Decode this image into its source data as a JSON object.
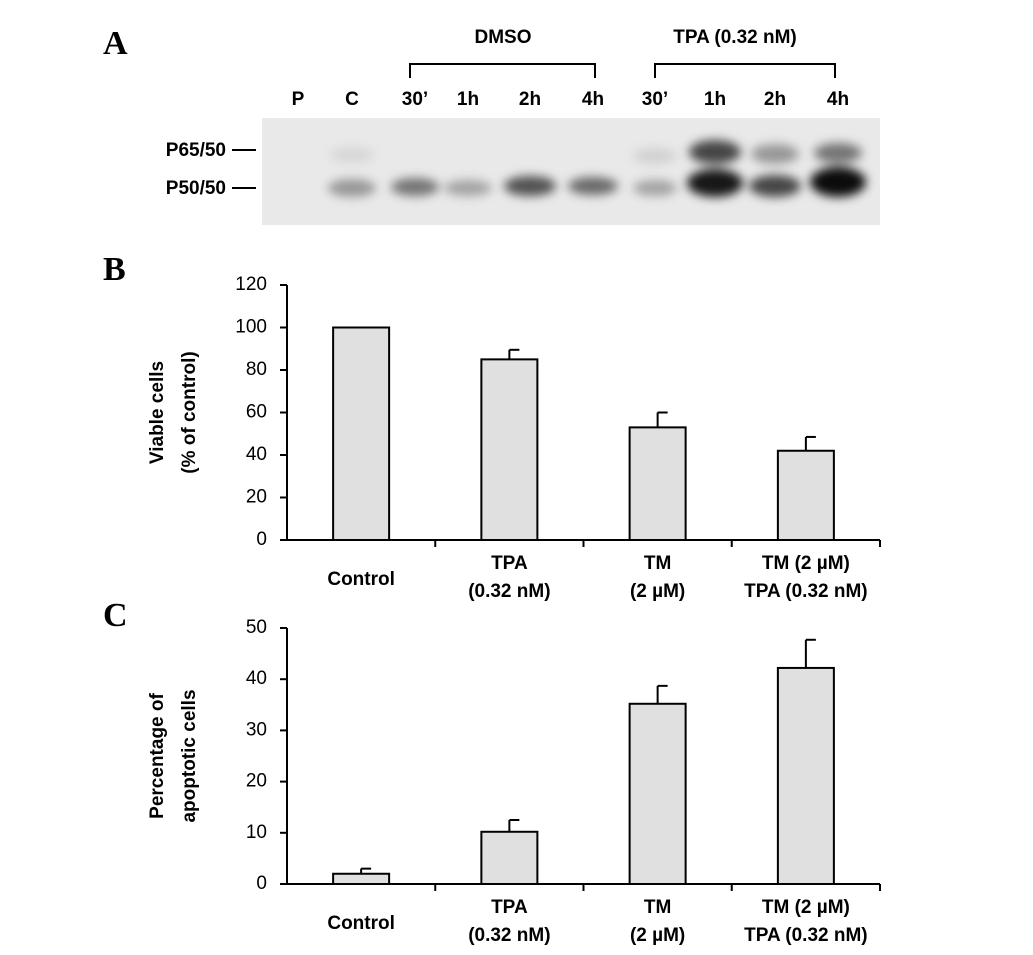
{
  "panel_a": {
    "label": "A",
    "groups": [
      "DMSO",
      "TPA (0.32 nM)"
    ],
    "lanes": [
      "P",
      "C",
      "30’",
      "1h",
      "2h",
      "4h",
      "30’",
      "1h",
      "2h",
      "4h"
    ],
    "bands": [
      "P65/50",
      "P50/50"
    ]
  },
  "chart_data": [
    {
      "type": "bar",
      "panel_label": "B",
      "y_label": [
        "Viable cells",
        "(% of control)"
      ],
      "categories": [
        [
          "Control"
        ],
        [
          "TPA",
          "(0.32 nM)"
        ],
        [
          "TM",
          "(2 µM)"
        ],
        [
          "TM (2 µM)",
          "TPA (0.32 nM)"
        ]
      ],
      "values": [
        100,
        85,
        53,
        42
      ],
      "errors": [
        0,
        4.5,
        7,
        6.5
      ],
      "color": "#e0e0e0",
      "ylim": [
        0,
        120
      ],
      "yticks": [
        0,
        20,
        40,
        60,
        80,
        100,
        120
      ]
    },
    {
      "type": "bar",
      "panel_label": "C",
      "y_label": [
        "Percentage of",
        "apoptotic cells"
      ],
      "categories": [
        [
          "Control"
        ],
        [
          "TPA",
          "(0.32 nM)"
        ],
        [
          "TM",
          "(2 µM)"
        ],
        [
          "TM (2 µM)",
          "TPA (0.32 nM)"
        ]
      ],
      "values": [
        2,
        10.2,
        35.2,
        42.2
      ],
      "errors": [
        1,
        2.3,
        3.5,
        5.5
      ],
      "color": "#e0e0e0",
      "ylim": [
        0,
        50
      ],
      "yticks": [
        0,
        10,
        20,
        30,
        40,
        50
      ]
    }
  ]
}
